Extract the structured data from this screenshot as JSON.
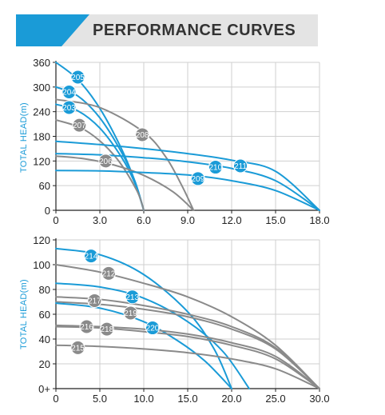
{
  "header": {
    "title": "PERFORMANCE CURVES"
  },
  "colors": {
    "blue": "#1a9bd7",
    "gray": "#8a8a8a",
    "grid": "#cfcfcf",
    "axis": "#222222"
  },
  "chart_data": [
    {
      "type": "line",
      "ylabel": "TOTAL HEAD(m)",
      "xlim": [
        0,
        18
      ],
      "ylim": [
        0,
        360
      ],
      "x_ticks": [
        "0",
        "3.0",
        "6.0",
        "9.0",
        "12.0",
        "15.0",
        "18.0"
      ],
      "y_ticks": [
        "0",
        "60",
        "120",
        "180",
        "240",
        "300",
        "360"
      ],
      "grid": true,
      "series": [
        {
          "name": "205",
          "color": "blue",
          "x": [
            0,
            1.5,
            3,
            4.5,
            5.4,
            6
          ],
          "y": [
            360,
            318,
            248,
            148,
            70,
            0
          ],
          "label_at": [
            1.5,
            324
          ]
        },
        {
          "name": "204",
          "color": "blue",
          "x": [
            0,
            1.5,
            3,
            4.5,
            5.4,
            6
          ],
          "y": [
            300,
            278,
            225,
            140,
            70,
            0
          ],
          "label_at": [
            0.9,
            288
          ]
        },
        {
          "name": "203",
          "color": "blue",
          "x": [
            0,
            1.5,
            3,
            4.5,
            5.4,
            6
          ],
          "y": [
            258,
            242,
            200,
            128,
            65,
            0
          ],
          "label_at": [
            0.9,
            250
          ]
        },
        {
          "name": "207",
          "color": "gray",
          "x": [
            0,
            2,
            4,
            5.5,
            6
          ],
          "y": [
            220,
            195,
            133,
            50,
            0
          ],
          "label_at": [
            1.6,
            207
          ]
        },
        {
          "name": "208",
          "color": "gray",
          "x": [
            0,
            3,
            6,
            7.5,
            8.6,
            9.4
          ],
          "y": [
            270,
            250,
            190,
            130,
            60,
            0
          ],
          "label_at": [
            5.9,
            184
          ]
        },
        {
          "name": "206",
          "color": "gray",
          "x": [
            0,
            2,
            4,
            6,
            8,
            9.4
          ],
          "y": [
            132,
            125,
            110,
            85,
            45,
            0
          ],
          "label_at": [
            3.4,
            120
          ]
        },
        {
          "name": "209",
          "color": "blue",
          "x": [
            0,
            3,
            6,
            9,
            12,
            15,
            18
          ],
          "y": [
            97,
            96,
            92,
            86,
            72,
            48,
            0
          ],
          "label_at": [
            9.7,
            77
          ]
        },
        {
          "name": "210",
          "color": "blue",
          "x": [
            0,
            3,
            6,
            9,
            12,
            15,
            18
          ],
          "y": [
            138,
            135,
            128,
            118,
            102,
            72,
            0
          ],
          "label_at": [
            10.9,
            105
          ]
        },
        {
          "name": "211",
          "color": "blue",
          "x": [
            0,
            3,
            6,
            9,
            12,
            15,
            18
          ],
          "y": [
            168,
            160,
            150,
            138,
            122,
            95,
            0
          ],
          "label_at": [
            12.6,
            108
          ]
        }
      ]
    },
    {
      "type": "line",
      "ylabel": "TOTAL HEAD(m)",
      "xlim": [
        0,
        30
      ],
      "ylim": [
        0,
        120
      ],
      "x_ticks": [
        "0",
        "5.0",
        "10.0",
        "15.0",
        "20.0",
        "25.0",
        "30.0"
      ],
      "y_ticks": [
        "0+",
        "20",
        "40",
        "60",
        "80",
        "100",
        "120"
      ],
      "grid": true,
      "series": [
        {
          "name": "214",
          "color": "blue",
          "x": [
            0,
            5,
            10,
            15,
            18,
            20
          ],
          "y": [
            113,
            108,
            92,
            62,
            32,
            0
          ],
          "label_at": [
            4,
            107
          ]
        },
        {
          "name": "212",
          "color": "gray",
          "x": [
            0,
            5,
            10,
            15,
            20,
            25,
            30
          ],
          "y": [
            100,
            94,
            85,
            74,
            58,
            35,
            0
          ],
          "label_at": [
            6,
            93
          ]
        },
        {
          "name": "213",
          "color": "blue",
          "x": [
            0,
            5,
            10,
            15,
            19,
            22
          ],
          "y": [
            85,
            82,
            73,
            54,
            30,
            0
          ],
          "label_at": [
            8.7,
            74
          ]
        },
        {
          "name": "217",
          "color": "gray",
          "x": [
            0,
            5,
            10,
            15,
            20,
            25,
            30
          ],
          "y": [
            74,
            72,
            67,
            60,
            50,
            33,
            0
          ],
          "label_at": [
            4.4,
            71
          ]
        },
        {
          "name": "219",
          "color": "gray",
          "x": [
            0,
            5,
            10,
            15,
            20,
            25,
            30
          ],
          "y": [
            70,
            68,
            64,
            58,
            48,
            32,
            0
          ],
          "label_at": [
            8.5,
            61
          ]
        },
        {
          "name": "220",
          "color": "blue",
          "x": [
            0,
            5,
            10,
            14,
            17,
            20
          ],
          "y": [
            69,
            65,
            54,
            38,
            22,
            0
          ],
          "label_at": [
            11,
            49
          ]
        },
        {
          "name": "216",
          "color": "gray",
          "x": [
            0,
            5,
            10,
            15,
            20,
            25,
            30
          ],
          "y": [
            51,
            50,
            48,
            44,
            37,
            26,
            0
          ],
          "label_at": [
            3.5,
            50
          ]
        },
        {
          "name": "218",
          "color": "gray",
          "x": [
            0,
            5,
            10,
            15,
            20,
            25,
            30
          ],
          "y": [
            50,
            49,
            46,
            42,
            35,
            24,
            0
          ],
          "label_at": [
            5.8,
            48
          ]
        },
        {
          "name": "215",
          "color": "gray",
          "x": [
            0,
            5,
            10,
            15,
            20,
            25,
            30
          ],
          "y": [
            35,
            34,
            32,
            29,
            24,
            16,
            0
          ],
          "label_at": [
            2.5,
            33
          ]
        }
      ]
    }
  ]
}
